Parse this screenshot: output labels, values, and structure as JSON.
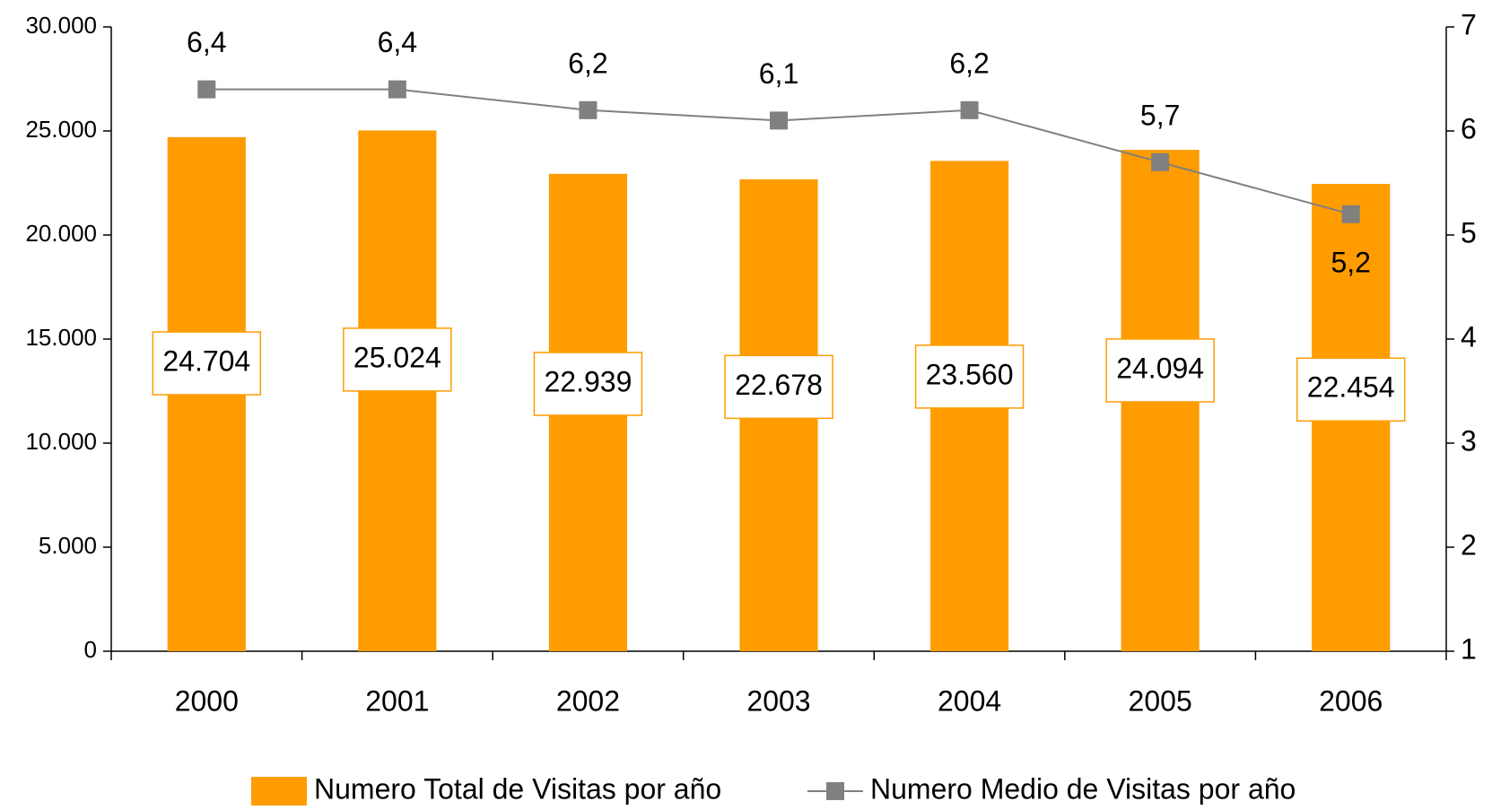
{
  "chart_data": {
    "type": "bar",
    "categories": [
      "2000",
      "2001",
      "2002",
      "2003",
      "2004",
      "2005",
      "2006"
    ],
    "series": [
      {
        "name": "Numero Total de Visitas por año",
        "type": "bar",
        "color": "#ff9c00",
        "values": [
          24704,
          25024,
          22939,
          22678,
          23560,
          24094,
          22454
        ],
        "value_labels": [
          "24.704",
          "25.024",
          "22.939",
          "22.678",
          "23.560",
          "24.094",
          "22.454"
        ]
      },
      {
        "name": "Numero Medio de Visitas por año",
        "type": "line",
        "color": "#808080",
        "axis": "y2",
        "values": [
          6.4,
          6.4,
          6.2,
          6.1,
          6.2,
          5.7,
          5.2
        ],
        "value_labels": [
          "6,4",
          "6,4",
          "6,2",
          "6,1",
          "6,2",
          "5,7",
          "5,2"
        ]
      }
    ],
    "ylim": [
      0,
      30000
    ],
    "yticks": [
      0,
      {
        "value": 5000,
        "label": "5.000"
      },
      {
        "value": 10000,
        "label": "10.000"
      },
      {
        "value": 15000,
        "label": "15.000"
      },
      {
        "value": 20000,
        "label": "20.000"
      },
      {
        "value": 25000,
        "label": "25.000"
      },
      {
        "value": 30000,
        "label": "30.000"
      }
    ],
    "y2lim": [
      1,
      7
    ],
    "y2ticks": [
      1,
      2,
      3,
      4,
      5,
      6,
      7
    ],
    "legend": "bottom"
  }
}
